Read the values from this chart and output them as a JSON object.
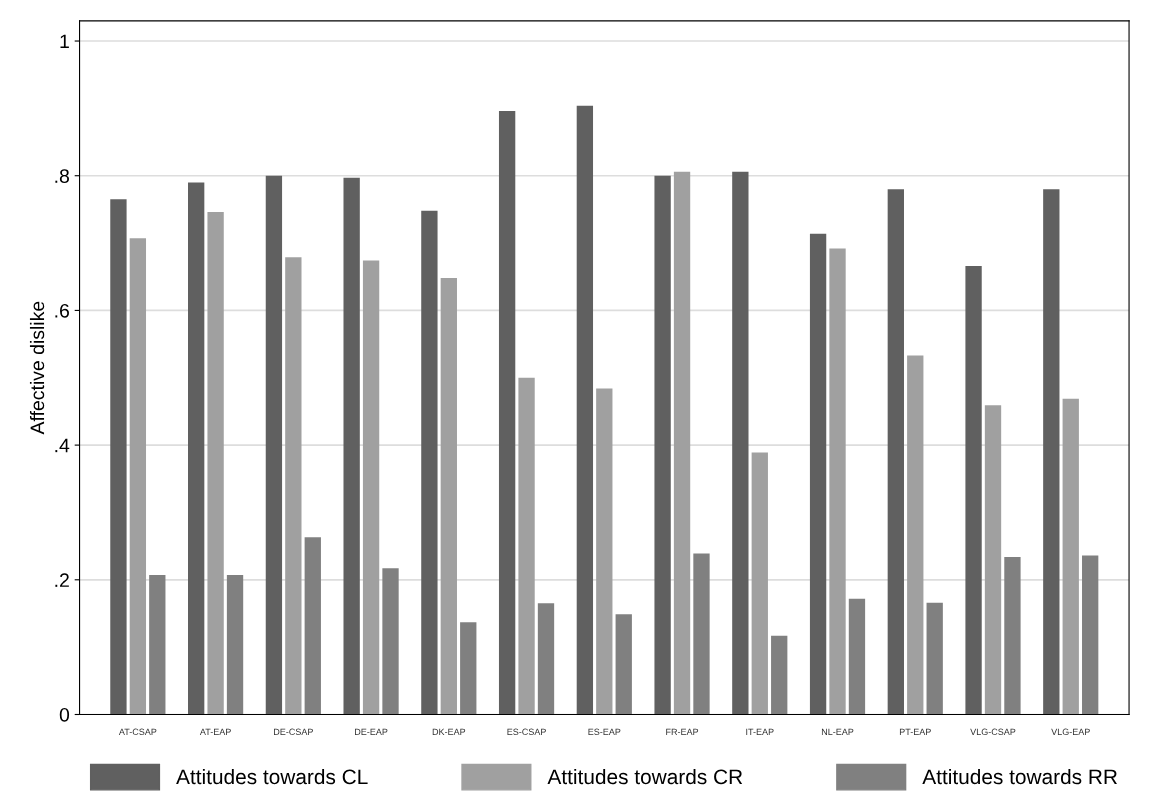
{
  "chart_data": {
    "type": "bar",
    "ylabel": "Affective dislike",
    "categories": [
      "AT-CSAP",
      "AT-EAP",
      "DE-CSAP",
      "DE-EAP",
      "DK-EAP",
      "ES-CSAP",
      "ES-EAP",
      "FR-EAP",
      "IT-EAP",
      "NL-EAP",
      "PT-EAP",
      "VLG-CSAP",
      "VLG-EAP"
    ],
    "series": [
      {
        "name": "Attitudes towards CL",
        "color": "#606060",
        "values": [
          0.765,
          0.79,
          0.8,
          0.797,
          0.748,
          0.896,
          0.904,
          0.8,
          0.806,
          0.714,
          0.78,
          0.666,
          0.78
        ]
      },
      {
        "name": "Attitudes towards CR",
        "color": "#a0a0a0",
        "values": [
          0.707,
          0.746,
          0.679,
          0.674,
          0.648,
          0.5,
          0.484,
          0.806,
          0.389,
          0.692,
          0.533,
          0.459,
          0.469
        ]
      },
      {
        "name": "Attitudes towards RR",
        "color": "#808080",
        "values": [
          0.207,
          0.207,
          0.263,
          0.217,
          0.137,
          0.165,
          0.149,
          0.239,
          0.117,
          0.172,
          0.166,
          0.234,
          0.236
        ]
      }
    ],
    "ylim": [
      0,
      1.03
    ],
    "yticks": [
      {
        "value": 0,
        "label": "0"
      },
      {
        "value": 0.2,
        "label": ".2"
      },
      {
        "value": 0.4,
        "label": ".4"
      },
      {
        "value": 0.6,
        "label": ".6"
      },
      {
        "value": 0.8,
        "label": ".8"
      },
      {
        "value": 1,
        "label": "1"
      }
    ],
    "grid": "y",
    "legend": "bottom"
  }
}
